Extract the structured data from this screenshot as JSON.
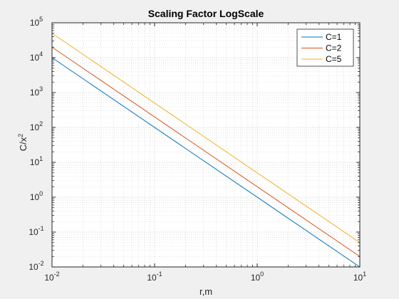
{
  "chart_data": {
    "type": "line",
    "title": "Scaling Factor LogScale",
    "xlabel": "r,m",
    "ylabel_base": "C/x",
    "ylabel_sup": "2",
    "xscale": "log",
    "yscale": "log",
    "xlim": [
      0.01,
      10
    ],
    "ylim": [
      0.01,
      100000
    ],
    "grid": true,
    "minor_grid": true,
    "legend_position": "top-right",
    "x_ticks": [
      {
        "value": 0.01,
        "base": "10",
        "exp": "-2"
      },
      {
        "value": 0.1,
        "base": "10",
        "exp": "-1"
      },
      {
        "value": 1,
        "base": "10",
        "exp": "0"
      },
      {
        "value": 10,
        "base": "10",
        "exp": "1"
      }
    ],
    "y_ticks": [
      {
        "value": 0.01,
        "base": "10",
        "exp": "-2"
      },
      {
        "value": 0.1,
        "base": "10",
        "exp": "-1"
      },
      {
        "value": 1,
        "base": "10",
        "exp": "0"
      },
      {
        "value": 10,
        "base": "10",
        "exp": "1"
      },
      {
        "value": 100,
        "base": "10",
        "exp": "2"
      },
      {
        "value": 1000,
        "base": "10",
        "exp": "3"
      },
      {
        "value": 10000,
        "base": "10",
        "exp": "4"
      },
      {
        "value": 100000,
        "base": "10",
        "exp": "5"
      }
    ],
    "x": [
      0.01,
      10
    ],
    "series": [
      {
        "name": "C=1",
        "color": "#0072bd",
        "values": [
          10000,
          0.01
        ]
      },
      {
        "name": "C=2",
        "color": "#d95319",
        "values": [
          20000,
          0.02
        ]
      },
      {
        "name": "C=5",
        "color": "#edb120",
        "values": [
          50000,
          0.05
        ]
      }
    ]
  }
}
